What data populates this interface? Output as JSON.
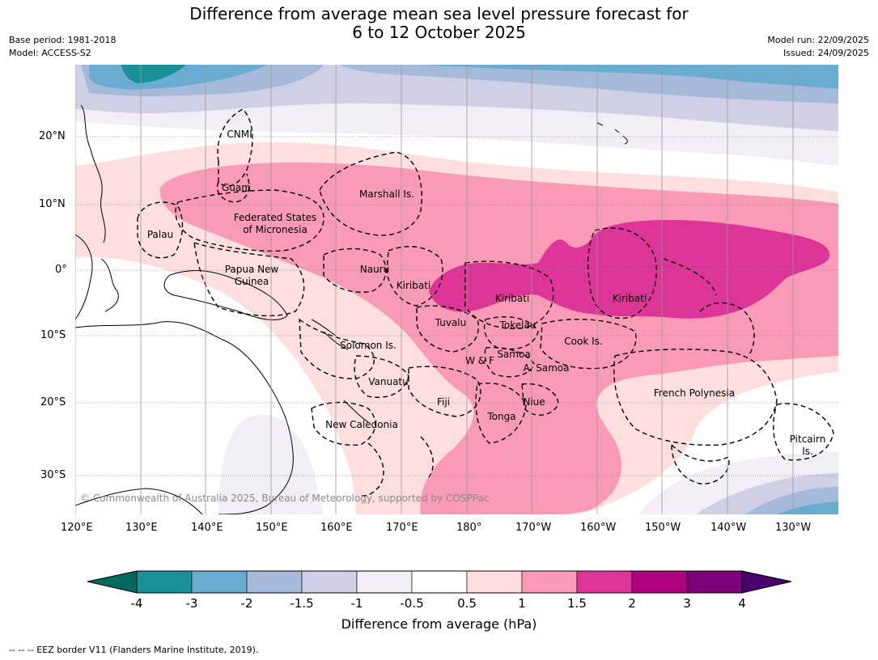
{
  "header": {
    "title_line1": "Difference from average mean sea level pressure forecast for",
    "title_line2": "6 to 12 October 2025",
    "base_period": "Base period: 1981-2018",
    "model": "Model: ACCESS-S2",
    "model_run": "Model run: 22/09/2025",
    "issued": "Issued: 24/09/2025"
  },
  "map": {
    "lat_ticks": [
      "20°N",
      "10°N",
      "0°",
      "10°S",
      "20°S",
      "30°S"
    ],
    "lon_ticks": [
      "120°E",
      "130°E",
      "140°E",
      "150°E",
      "160°E",
      "170°E",
      "180°",
      "170°W",
      "160°W",
      "150°W",
      "140°W",
      "130°W"
    ],
    "labels": {
      "cnmi": "CNMI",
      "guam": "Guam",
      "marshall": "Marshall Is.",
      "fsm_line1": "Federated States",
      "fsm_line2": "of Micronesia",
      "palau": "Palau",
      "png_line1": "Papua New",
      "png_line2": "Guinea",
      "nauru": "Nauru",
      "kiribati_west": "Kiribati",
      "kiribati_central": "Kiribati",
      "kiribati_east": "Kiribati",
      "tuvalu": "Tuvalu",
      "tokelau": "Tokelau",
      "solomon": "Solomon Is.",
      "cook": "Cook Is.",
      "samoa": "Samoa",
      "wf": "W & F",
      "a_samoa": "A. Samoa",
      "vanuatu": "Vanuatu",
      "fiji": "Fiji",
      "niue": "Niue",
      "tonga": "Tonga",
      "french_polynesia": "French Polynesia",
      "new_caledonia": "New Caledonia",
      "pitcairn_line1": "Pitcairn",
      "pitcairn_line2": "Is."
    },
    "copyright": "© Commonwealth of Australia 2025, Bureau of Meteorology, supported by COSPPac"
  },
  "colorbar": {
    "title": "Difference from average (hPa)",
    "tick_labels": [
      "-4",
      "-3",
      "-2",
      "-1.5",
      "-1",
      "-0.5",
      "0.5",
      "1",
      "1.5",
      "2",
      "3",
      "4"
    ],
    "colors": {
      "below_min": "#00695e",
      "lt_neg4_to_neg3": "#1a9199",
      "neg3_to_neg2": "#6aabd2",
      "neg2_to_neg1_5": "#a5b9d9",
      "neg1_5_to_neg1": "#cfd0e6",
      "neg1_to_neg0_5": "#f2eef5",
      "neg0_5_to_0_5": "#ffffff",
      "p0_5_to_1": "#fedede",
      "p1_to_1_5": "#f99ab6",
      "p1_5_to_2": "#dd3497",
      "p2_to_3": "#ae017e",
      "p3_to_4": "#7a0177",
      "above_max": "#49006a"
    }
  },
  "footnote": "-- -- -- EEZ border V11 (Flanders Marine Institute, 2019)."
}
